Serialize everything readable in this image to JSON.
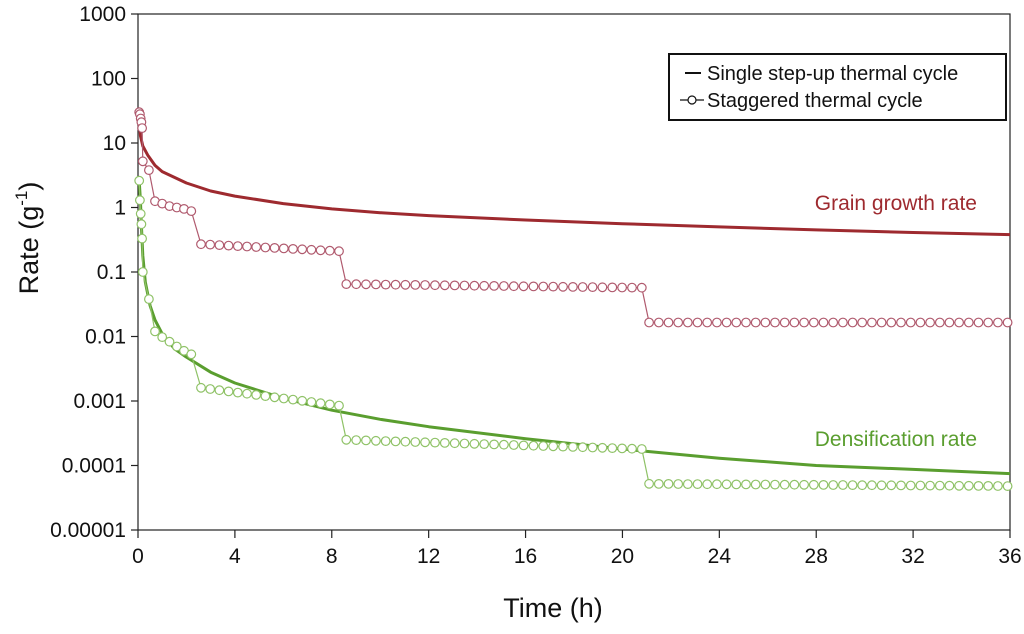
{
  "chart_data": {
    "type": "line",
    "xlabel": "Time (h)",
    "ylabel": "Rate (g-1)",
    "ylabel_base": "Rate (g",
    "ylabel_sup": "-1",
    "ylabel_tail": ")",
    "x_scale": "linear",
    "y_scale": "log",
    "xlim": [
      0,
      36
    ],
    "ylim": [
      1e-05,
      1000
    ],
    "x_ticks": [
      0,
      4,
      8,
      12,
      16,
      20,
      24,
      28,
      32,
      36
    ],
    "x_tick_labels": [
      "0",
      "4",
      "8",
      "12",
      "16",
      "20",
      "24",
      "28",
      "32",
      "36"
    ],
    "y_ticks": [
      1e-05,
      0.0001,
      0.001,
      0.01,
      0.1,
      1,
      10,
      100,
      1000
    ],
    "y_tick_labels": [
      "0.00001",
      "0.0001",
      "0.001",
      "0.01",
      "0.1",
      "1",
      "10",
      "100",
      "1000"
    ],
    "grid": false,
    "legend_position": "top-right",
    "legend": [
      {
        "label": "Single step-up thermal cycle",
        "style": "line"
      },
      {
        "label": "Staggered thermal cycle",
        "style": "line-with-open-circles"
      }
    ],
    "annotations": [
      {
        "text": "Grain growth rate",
        "color": "#9e2a2f"
      },
      {
        "text": "Densification rate",
        "color": "#5a9e2f"
      }
    ],
    "series": [
      {
        "group": "Grain growth rate",
        "cycle": "Single step-up thermal cycle",
        "style": "line",
        "color": "#9e2a2f",
        "points": [
          [
            0.05,
            25
          ],
          [
            0.1,
            13
          ],
          [
            0.2,
            9
          ],
          [
            0.4,
            6.5
          ],
          [
            0.7,
            4.5
          ],
          [
            1,
            3.6
          ],
          [
            2,
            2.4
          ],
          [
            3,
            1.8
          ],
          [
            4,
            1.5
          ],
          [
            6,
            1.15
          ],
          [
            8,
            0.95
          ],
          [
            10,
            0.83
          ],
          [
            12,
            0.75
          ],
          [
            16,
            0.64
          ],
          [
            20,
            0.56
          ],
          [
            24,
            0.5
          ],
          [
            28,
            0.45
          ],
          [
            32,
            0.41
          ],
          [
            36,
            0.38
          ]
        ]
      },
      {
        "group": "Grain growth rate",
        "cycle": "Staggered thermal cycle",
        "style": "line-with-open-circles",
        "color": "#b05a6e",
        "segments": [
          {
            "x": [
              0.05,
              0.08,
              0.11,
              0.14,
              0.17
            ],
            "y": [
              30,
              28,
              24,
              21,
              17
            ]
          },
          {
            "x": [
              0.2
            ],
            "y": [
              5.2
            ]
          },
          {
            "x": [
              0.45
            ],
            "y": [
              3.8
            ]
          },
          {
            "x": [
              0.7,
              1.0,
              1.3,
              1.6,
              1.9,
              2.2
            ],
            "y": [
              1.25,
              1.15,
              1.05,
              1.0,
              0.95,
              0.88
            ]
          },
          {
            "x_start": 2.6,
            "x_end": 8.3,
            "count": 16,
            "y_start": 0.27,
            "y_end": 0.21
          },
          {
            "x_start": 8.6,
            "x_end": 20.8,
            "count": 31,
            "y_start": 0.065,
            "y_end": 0.057
          },
          {
            "x_start": 21.1,
            "x_end": 35.9,
            "count": 38,
            "y_start": 0.0165,
            "y_end": 0.0165
          }
        ]
      },
      {
        "group": "Densification rate",
        "cycle": "Single step-up thermal cycle",
        "style": "line",
        "color": "#5a9e2f",
        "points": [
          [
            0.05,
            2.6
          ],
          [
            0.1,
            1.3
          ],
          [
            0.15,
            0.45
          ],
          [
            0.2,
            0.18
          ],
          [
            0.3,
            0.07
          ],
          [
            0.5,
            0.03
          ],
          [
            0.7,
            0.018
          ],
          [
            1,
            0.011
          ],
          [
            1.5,
            0.0065
          ],
          [
            2,
            0.0048
          ],
          [
            3,
            0.0028
          ],
          [
            4,
            0.0019
          ],
          [
            6,
            0.0011
          ],
          [
            8,
            0.00072
          ],
          [
            10,
            0.00052
          ],
          [
            12,
            0.0004
          ],
          [
            16,
            0.00026
          ],
          [
            20,
            0.00018
          ],
          [
            24,
            0.00013
          ],
          [
            28,
            0.0001
          ],
          [
            32,
            8.7e-05
          ],
          [
            36,
            7.5e-05
          ]
        ]
      },
      {
        "group": "Densification rate",
        "cycle": "Staggered thermal cycle",
        "style": "line-with-open-circles",
        "color": "#8fc267",
        "segments": [
          {
            "x": [
              0.05,
              0.08,
              0.11,
              0.14,
              0.17,
              0.2
            ],
            "y": [
              2.6,
              1.3,
              0.8,
              0.55,
              0.33,
              0.1
            ]
          },
          {
            "x": [
              0.45
            ],
            "y": [
              0.038
            ]
          },
          {
            "x": [
              0.7,
              1.0,
              1.3,
              1.6,
              1.9,
              2.2
            ],
            "y": [
              0.012,
              0.0098,
              0.0083,
              0.007,
              0.006,
              0.0053
            ]
          },
          {
            "x_start": 2.6,
            "x_end": 8.3,
            "count": 16,
            "y_start": 0.0016,
            "y_end": 0.00085
          },
          {
            "x_start": 8.6,
            "x_end": 20.8,
            "count": 31,
            "y_start": 0.00025,
            "y_end": 0.00018
          },
          {
            "x_start": 21.1,
            "x_end": 35.9,
            "count": 38,
            "y_start": 5.2e-05,
            "y_end": 4.8e-05
          }
        ]
      }
    ]
  }
}
